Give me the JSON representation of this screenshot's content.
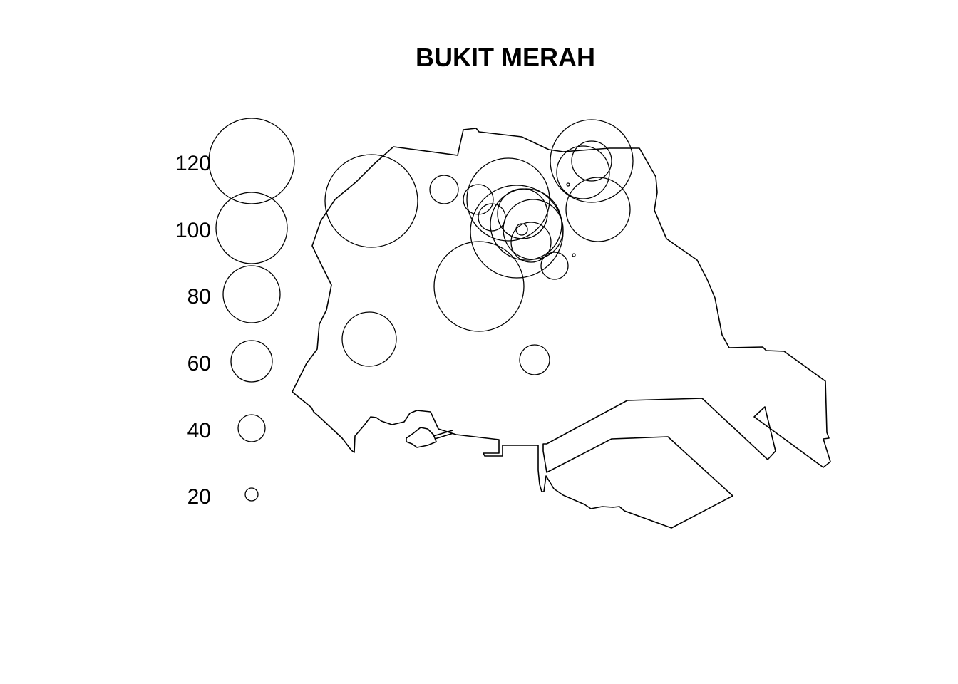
{
  "map": {
    "title": "BUKIT MERAH",
    "stroke_color": "#000000",
    "background_color": "#ffffff"
  },
  "chart_data": {
    "type": "scatter",
    "title": "BUKIT MERAH",
    "xlabel": "",
    "ylabel": "",
    "grid": false,
    "size_legend": {
      "placement": "left",
      "values": [
        120,
        100,
        80,
        60,
        40,
        20
      ],
      "labels": [
        "120",
        "100",
        "80",
        "60",
        "40",
        "20"
      ]
    }
  }
}
